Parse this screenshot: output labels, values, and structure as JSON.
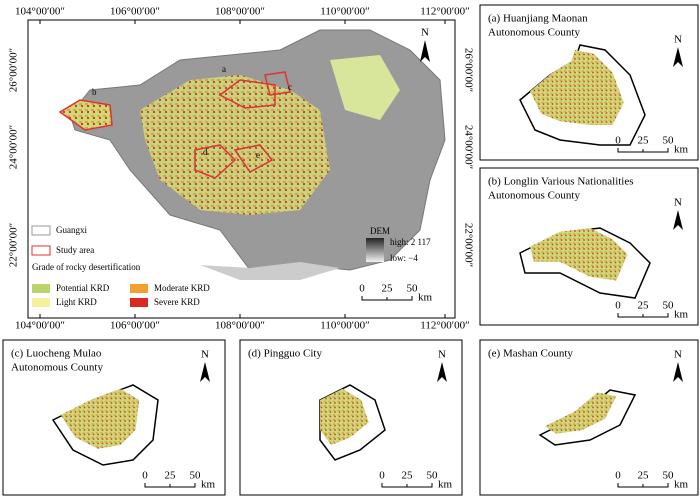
{
  "main_map": {
    "top_labels": [
      "104°00′00″",
      "106°00′00″",
      "108°00′00″",
      "110°00′00″",
      "112°00′00″"
    ],
    "bottom_labels": [
      "104°00′00″",
      "106°00′00″",
      "108°00′00″",
      "110°00′00″",
      "112°00′00″"
    ],
    "left_labels": [
      "26°00′00″",
      "24°00′00″",
      "22°00′00″"
    ],
    "right_labels": [
      "26°00′00″",
      "24°00′00″",
      "22°00′00″"
    ],
    "sites": [
      "a",
      "b",
      "c",
      "d",
      "e"
    ],
    "legend": {
      "boundary": "Guangxi",
      "study": "Study area",
      "heading": "Grade of rocky desertification",
      "grades": [
        "Potential KRD",
        "Light KRD",
        "Moderate KRD",
        "Severe KRD"
      ]
    },
    "dem": {
      "title": "DEM",
      "high": "high: 2 117",
      "low": "low: −4"
    },
    "scale": {
      "ticks": [
        0,
        25,
        50
      ],
      "unit": "km"
    },
    "north": "N"
  },
  "insets": [
    {
      "title": [
        "(a)  Huanjiang Maonan",
        "Autonomous County"
      ],
      "scale": {
        "ticks": [
          0,
          25,
          50
        ],
        "unit": "km"
      },
      "north": "N"
    },
    {
      "title": [
        "(b)  Longlin Various Nationalities",
        "Autonomous County"
      ],
      "scale": {
        "ticks": [
          0,
          25,
          50
        ],
        "unit": "km"
      },
      "north": "N"
    },
    {
      "title": [
        "(c)  Luocheng Mulao",
        "Autonomous County"
      ],
      "scale": {
        "ticks": [
          0,
          25,
          50
        ],
        "unit": "km"
      },
      "north": "N"
    },
    {
      "title": [
        "(d)  Pingguo City"
      ],
      "scale": {
        "ticks": [
          0,
          25,
          50
        ],
        "unit": "km"
      },
      "north": "N"
    },
    {
      "title": [
        "(e)  Mashan County"
      ],
      "scale": {
        "ticks": [
          0,
          25,
          50
        ],
        "unit": "km"
      },
      "north": "N"
    }
  ]
}
